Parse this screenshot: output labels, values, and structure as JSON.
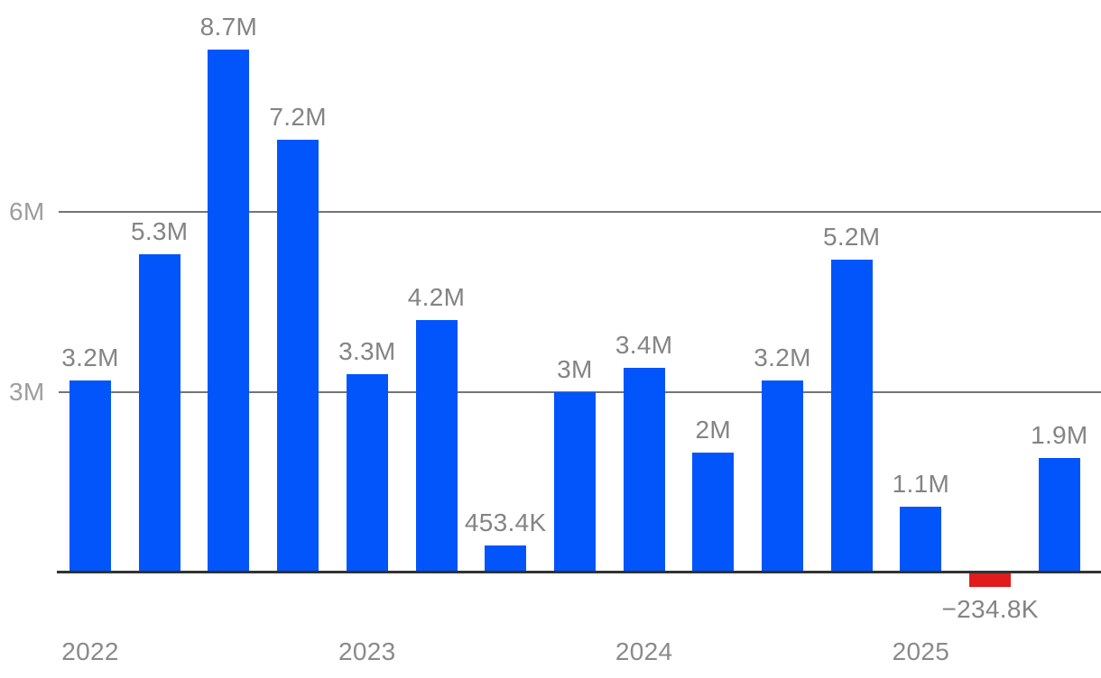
{
  "chart_data": {
    "type": "bar",
    "title": "",
    "xlabel": "",
    "ylabel": "",
    "legend": null,
    "grid": true,
    "y_axis": {
      "range": [
        -300000,
        9000000
      ],
      "ticks": [
        {
          "label": "3M",
          "value": 3000000
        },
        {
          "label": "6M",
          "value": 6000000
        }
      ]
    },
    "x_axis": {
      "tick_labels": [
        {
          "label": "2022",
          "bar_index": 0
        },
        {
          "label": "2023",
          "bar_index": 4
        },
        {
          "label": "2024",
          "bar_index": 8
        },
        {
          "label": "2025",
          "bar_index": 12
        }
      ]
    },
    "bars": [
      {
        "label": "3.2M",
        "value": 3200000
      },
      {
        "label": "5.3M",
        "value": 5300000
      },
      {
        "label": "8.7M",
        "value": 8700000
      },
      {
        "label": "7.2M",
        "value": 7200000
      },
      {
        "label": "3.3M",
        "value": 3300000
      },
      {
        "label": "4.2M",
        "value": 4200000
      },
      {
        "label": "453.4K",
        "value": 453400
      },
      {
        "label": "3M",
        "value": 3000000
      },
      {
        "label": "3.4M",
        "value": 3400000
      },
      {
        "label": "2M",
        "value": 2000000
      },
      {
        "label": "3.2M",
        "value": 3200000
      },
      {
        "label": "5.2M",
        "value": 5200000
      },
      {
        "label": "1.1M",
        "value": 1100000
      },
      {
        "label": "−234.8K",
        "value": -234800
      },
      {
        "label": "1.9M",
        "value": 1900000
      }
    ],
    "colors": {
      "bar_positive": "#0255fa",
      "bar_negative": "#e01c1c",
      "grid_line": "#757575",
      "axis_line": "#333333",
      "value_label": "#848484",
      "y_tick_label": "#9d9d9d",
      "x_tick_label": "#8a8a8a"
    }
  }
}
